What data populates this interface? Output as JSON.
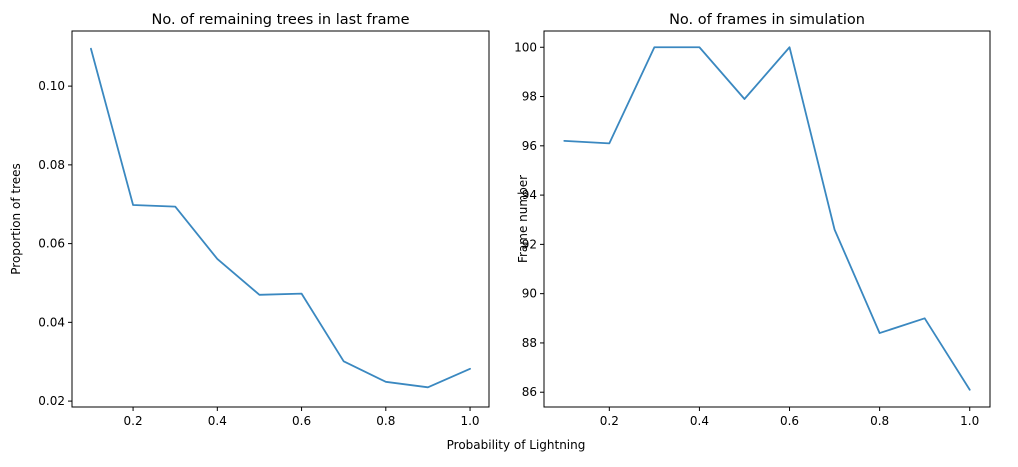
{
  "figure": {
    "shared_xlabel": "Probability of Lightning"
  },
  "chart_data": [
    {
      "type": "line",
      "title": "No. of remaining trees in last frame",
      "xlabel": "",
      "ylabel": "Proportion of trees",
      "xlim": [
        0.055,
        1.045
      ],
      "ylim": [
        0.0185,
        0.114
      ],
      "x_ticks": [
        0.2,
        0.4,
        0.6,
        0.8,
        1.0
      ],
      "x_tick_labels": [
        "0.2",
        "0.4",
        "0.6",
        "0.8",
        "1.0"
      ],
      "y_ticks": [
        0.02,
        0.04,
        0.06,
        0.08,
        0.1
      ],
      "y_tick_labels": [
        "0.02",
        "0.04",
        "0.06",
        "0.08",
        "0.10"
      ],
      "grid": false,
      "color": "#3a88c0",
      "x": [
        0.1,
        0.2,
        0.3,
        0.4,
        0.5,
        0.6,
        0.7,
        0.8,
        0.9,
        1.0
      ],
      "y": [
        0.1095,
        0.0698,
        0.0694,
        0.0561,
        0.047,
        0.0473,
        0.0301,
        0.0249,
        0.0235,
        0.0282
      ]
    },
    {
      "type": "line",
      "title": "No. of frames in simulation",
      "xlabel": "",
      "ylabel": "Frame number",
      "xlim": [
        0.055,
        1.045
      ],
      "ylim": [
        85.4,
        100.66
      ],
      "x_ticks": [
        0.2,
        0.4,
        0.6,
        0.8,
        1.0
      ],
      "x_tick_labels": [
        "0.2",
        "0.4",
        "0.6",
        "0.8",
        "1.0"
      ],
      "y_ticks": [
        86,
        88,
        90,
        92,
        94,
        96,
        98,
        100
      ],
      "y_tick_labels": [
        "86",
        "88",
        "90",
        "92",
        "94",
        "96",
        "98",
        "100"
      ],
      "grid": false,
      "color": "#3a88c0",
      "x": [
        0.1,
        0.2,
        0.3,
        0.4,
        0.5,
        0.6,
        0.7,
        0.8,
        0.9,
        1.0
      ],
      "y": [
        96.2,
        96.1,
        100.0,
        100.0,
        97.9,
        100.0,
        92.6,
        88.4,
        89.0,
        86.1
      ]
    }
  ]
}
